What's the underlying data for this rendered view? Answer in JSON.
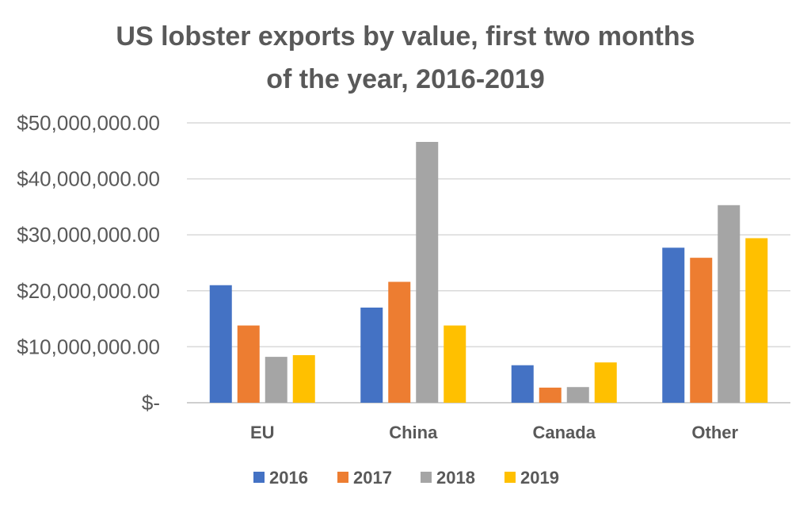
{
  "chart_data": {
    "type": "bar",
    "title_lines": [
      "US lobster exports by value, first two months",
      "of the year, 2016-2019"
    ],
    "categories": [
      "EU",
      "China",
      "Canada",
      "Other"
    ],
    "series": [
      {
        "name": "2016",
        "color": "#4472C4",
        "values": [
          21000000,
          17000000,
          6700000,
          27700000
        ]
      },
      {
        "name": "2017",
        "color": "#ED7D31",
        "values": [
          13800000,
          21600000,
          2700000,
          25900000
        ]
      },
      {
        "name": "2018",
        "color": "#A5A5A5",
        "values": [
          8200000,
          46600000,
          2800000,
          35300000
        ]
      },
      {
        "name": "2019",
        "color": "#FFC000",
        "values": [
          8500000,
          13800000,
          7200000,
          29400000
        ]
      }
    ],
    "y_ticks": [
      {
        "value": 0,
        "label": "$-"
      },
      {
        "value": 10000000,
        "label": "$10,000,000.00"
      },
      {
        "value": 20000000,
        "label": "$20,000,000.00"
      },
      {
        "value": 30000000,
        "label": "$30,000,000.00"
      },
      {
        "value": 40000000,
        "label": "$40,000,000.00"
      },
      {
        "value": 50000000,
        "label": "$50,000,000.00"
      }
    ],
    "ylim": [
      0,
      50000000
    ],
    "grid": true,
    "legend_position": "bottom"
  }
}
